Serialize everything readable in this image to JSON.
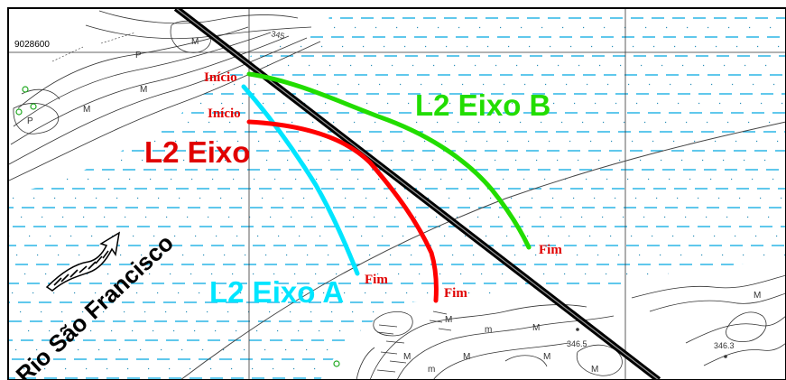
{
  "map": {
    "northing_label": "9028600",
    "contour_labels": [
      "345",
      "346.5",
      "346.3"
    ],
    "terrain_symbols": [
      "M",
      "M",
      "M",
      "P",
      "P",
      "M",
      "M",
      "M",
      "M",
      "M",
      "M",
      "M",
      "m",
      "m"
    ],
    "river_label": "Rio São Francisco",
    "water_color": "#00a6e0",
    "colors": {
      "eixo": "#ff0000",
      "eixo_a": "#00e5ff",
      "eixo_b": "#22dd00",
      "axis_line": "#000000",
      "marker_text": "#e00000"
    },
    "routes": [
      {
        "id": "eixo",
        "label": "L2 Eixo",
        "start": "Início",
        "end": "Fim"
      },
      {
        "id": "eixo-a",
        "label": "L2 Eixo A",
        "start": "Início",
        "end": "Fim"
      },
      {
        "id": "eixo-b",
        "label": "L2 Eixo B",
        "start": "Início",
        "end": "Fim"
      }
    ]
  }
}
